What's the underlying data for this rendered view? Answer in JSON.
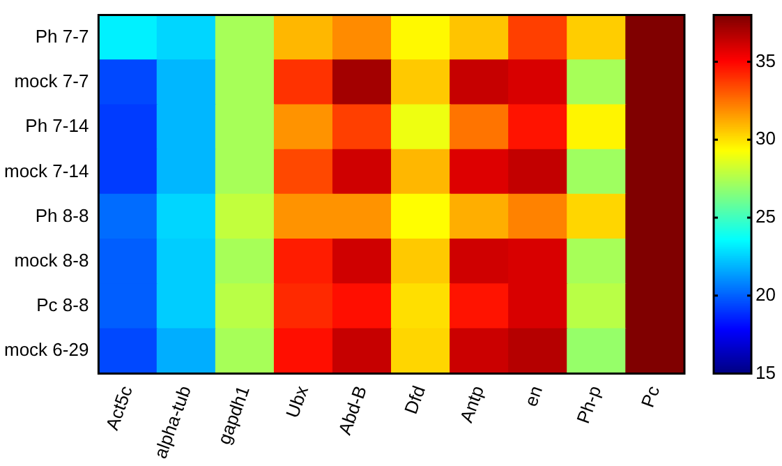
{
  "chart_data": {
    "type": "heatmap",
    "categories": [
      "Act5c",
      "alpha-tub",
      "gapdh1",
      "Ubx",
      "Abd-B",
      "Dfd",
      "Antp",
      "en",
      "Ph-p",
      "Pc"
    ],
    "y_categories": [
      "Ph 7-7",
      "mock 7-7",
      "Ph 7-14",
      "mock 7-14",
      "Ph 8-8",
      "mock 8-8",
      "Pc 8-8",
      "mock 6-29"
    ],
    "cells": [
      [
        23.3,
        22.7,
        27.4,
        31.0,
        32.0,
        29.5,
        30.7,
        33.7,
        30.5,
        38.0
      ],
      [
        19.5,
        22.0,
        27.4,
        34.0,
        37.2,
        30.6,
        36.4,
        36.0,
        27.4,
        38.0
      ],
      [
        19.2,
        22.0,
        27.4,
        31.8,
        33.7,
        29.0,
        32.5,
        34.7,
        29.6,
        38.0
      ],
      [
        19.2,
        22.0,
        27.4,
        33.5,
        36.2,
        31.0,
        35.9,
        36.5,
        27.2,
        38.0
      ],
      [
        20.3,
        22.7,
        28.0,
        31.8,
        31.8,
        29.4,
        31.2,
        32.2,
        30.3,
        38.0
      ],
      [
        20.0,
        22.5,
        27.4,
        34.5,
        36.2,
        30.6,
        36.2,
        36.0,
        27.4,
        38.0
      ],
      [
        20.0,
        22.5,
        27.8,
        34.2,
        34.8,
        30.1,
        34.7,
        36.0,
        27.8,
        38.0
      ],
      [
        19.5,
        21.8,
        27.4,
        34.8,
        36.4,
        30.3,
        36.3,
        36.8,
        27.0,
        38.0
      ]
    ],
    "clim": [
      15,
      38
    ],
    "cticks": [
      15,
      20,
      25,
      30,
      35
    ]
  }
}
